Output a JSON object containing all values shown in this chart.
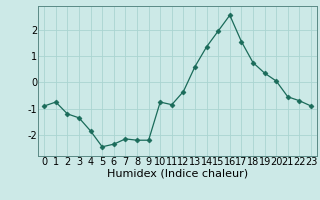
{
  "x": [
    0,
    1,
    2,
    3,
    4,
    5,
    6,
    7,
    8,
    9,
    10,
    11,
    12,
    13,
    14,
    15,
    16,
    17,
    18,
    19,
    20,
    21,
    22,
    23
  ],
  "y": [
    -0.9,
    -0.75,
    -1.2,
    -1.35,
    -1.85,
    -2.45,
    -2.35,
    -2.15,
    -2.2,
    -2.2,
    -0.75,
    -0.85,
    -0.35,
    0.6,
    1.35,
    1.95,
    2.55,
    1.55,
    0.75,
    0.35,
    0.05,
    -0.55,
    -0.7,
    -0.9
  ],
  "xlabel": "Humidex (Indice chaleur)",
  "ylim": [
    -2.8,
    2.9
  ],
  "xlim": [
    -0.5,
    23.5
  ],
  "yticks": [
    -2,
    -1,
    0,
    1,
    2
  ],
  "xticks": [
    0,
    1,
    2,
    3,
    4,
    5,
    6,
    7,
    8,
    9,
    10,
    11,
    12,
    13,
    14,
    15,
    16,
    17,
    18,
    19,
    20,
    21,
    22,
    23
  ],
  "line_color": "#1a6b5a",
  "marker": "D",
  "marker_size": 2.5,
  "bg_color": "#cce9e7",
  "grid_color": "#aad4d1",
  "xlabel_fontsize": 8,
  "tick_fontsize": 7,
  "spine_color": "#5a8a85"
}
